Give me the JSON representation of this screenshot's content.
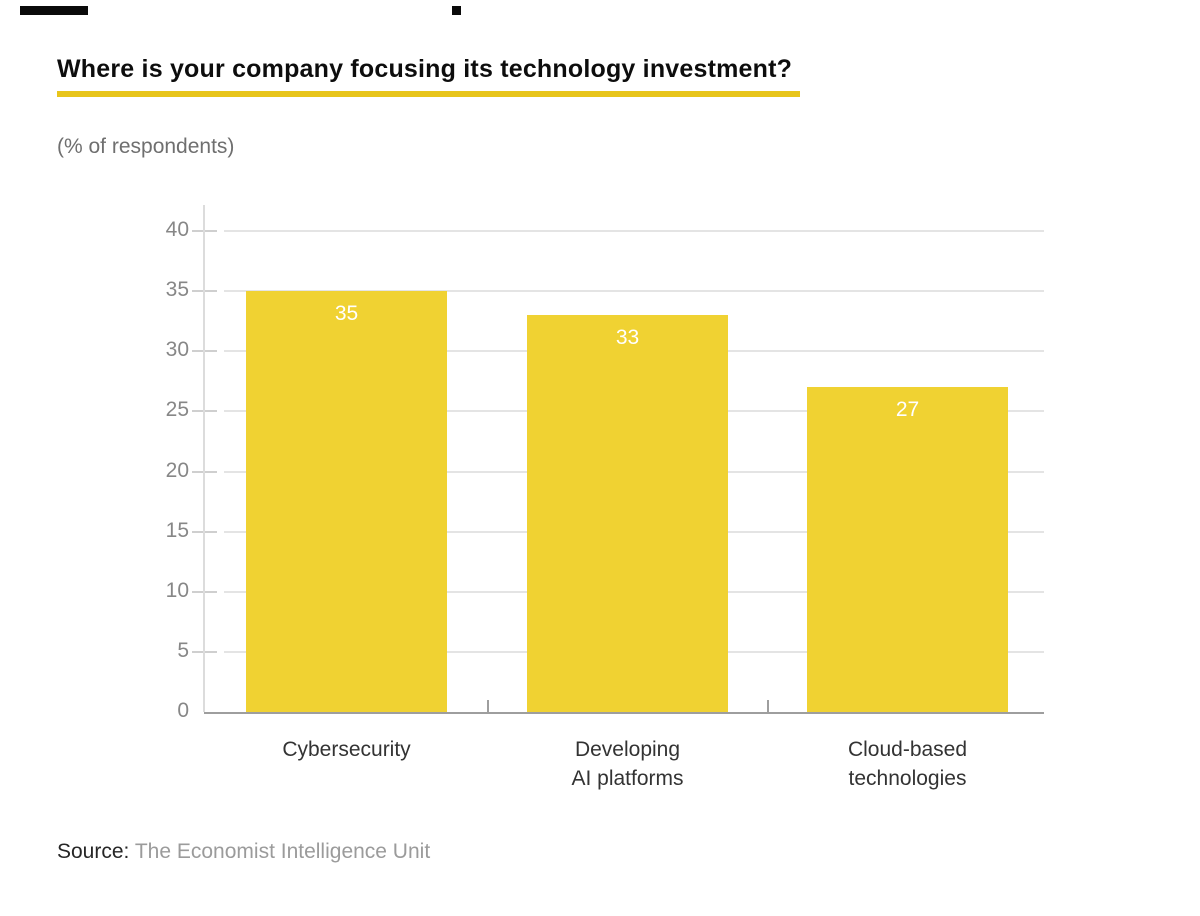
{
  "header": {
    "title": "Where is your company focusing its technology investment?",
    "subtitle": "(% of respondents)"
  },
  "source": {
    "prefix": "Source:",
    "text": "The Economist Intelligence Unit"
  },
  "colors": {
    "bar": "#F0D232",
    "title_underline": "#E8C51B",
    "decor_mark": "#0a0a0a",
    "gridline": "#e4e4e4",
    "axis_line": "#dcdcdc",
    "baseline": "#9e9e9e",
    "tick": "#cfcfcf",
    "divider_tick": "#9e9e9e",
    "axis_label": "#878787",
    "category_label": "#333333",
    "value_label": "#ffffff",
    "title_color": "#0d0d0d",
    "subtitle_color": "#6f6f6f",
    "source_prefix_color": "#262626",
    "source_text_color": "#9b9b9b"
  },
  "chart_data": {
    "type": "bar",
    "title": "Where is your company focusing its technology investment?",
    "subtitle": "(% of respondents)",
    "categories": [
      "Cybersecurity",
      "Developing AI platforms",
      "Cloud-based technologies"
    ],
    "category_lines": [
      [
        "Cybersecurity"
      ],
      [
        "Developing",
        "AI platforms"
      ],
      [
        "Cloud-based",
        "technologies"
      ]
    ],
    "values": [
      35,
      33,
      27
    ],
    "value_labels": [
      "35",
      "33",
      "27"
    ],
    "xlabel": "",
    "ylabel": "% of respondents",
    "ylim": [
      0,
      40
    ],
    "yticks": [
      0,
      5,
      10,
      15,
      20,
      25,
      30,
      35,
      40
    ],
    "grid": true,
    "legend": false,
    "bar_color": "#F0D232",
    "source": "Source: The Economist Intelligence Unit"
  }
}
